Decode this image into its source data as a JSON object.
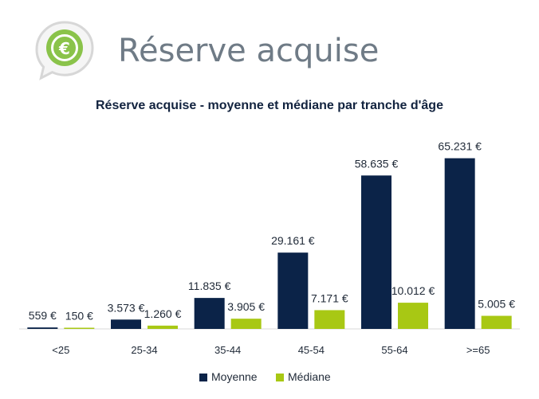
{
  "page": {
    "title": "Réserve acquise"
  },
  "logo": {
    "icon": "euro-speech-bubble-icon",
    "symbol": "€",
    "colors": {
      "outer": "#8ac34a",
      "inner": "#ffffff",
      "border": "#d7d7d7"
    }
  },
  "chart_data": {
    "type": "bar",
    "title": "Réserve acquise - moyenne et médiane par tranche d'âge",
    "categories": [
      "<25",
      "25-34",
      "35-44",
      "45-54",
      "55-64",
      ">=65"
    ],
    "series": [
      {
        "name": "Moyenne",
        "color": "#0b2348",
        "values": [
          559,
          3573,
          11835,
          29161,
          58635,
          65231
        ],
        "labels": [
          "559 €",
          "3.573 €",
          "11.835 €",
          "29.161 €",
          "58.635 €",
          "65.231 €"
        ]
      },
      {
        "name": "Médiane",
        "color": "#a8c814",
        "values": [
          150,
          1260,
          3905,
          7171,
          10012,
          5005
        ],
        "labels": [
          "150 €",
          "1.260 €",
          "3.905 €",
          "7.171 €",
          "10.012 €",
          "5.005 €"
        ]
      }
    ],
    "xlabel": "",
    "ylabel": "",
    "ylim": [
      0,
      70000
    ],
    "grid": false,
    "legend_position": "bottom-center"
  }
}
